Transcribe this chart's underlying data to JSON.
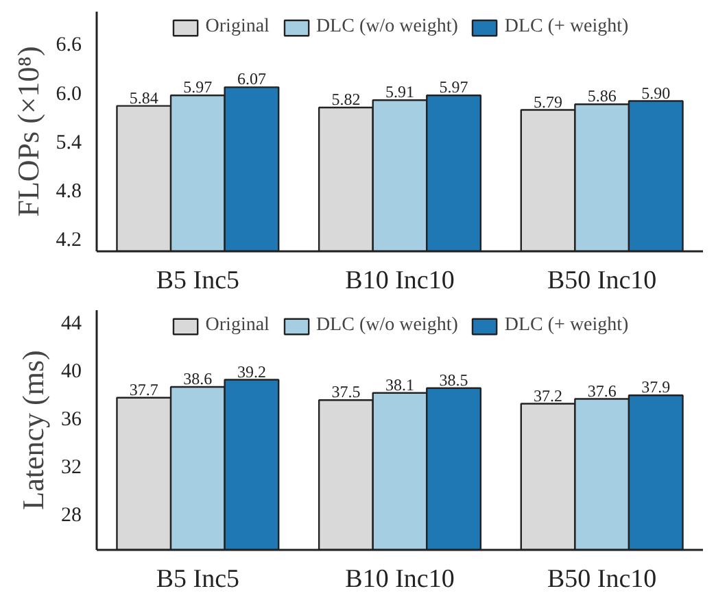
{
  "chart_data": [
    {
      "type": "bar",
      "ylabel": "FLOPs (×10⁸)",
      "categories": [
        "B5 Inc5",
        "B10 Inc10",
        "B50 Inc10"
      ],
      "ylim": [
        4.05,
        7.0
      ],
      "yticks": [
        {
          "value": 4.2,
          "label": "4.2"
        },
        {
          "value": 4.8,
          "label": "4.8"
        },
        {
          "value": 5.4,
          "label": "5.4"
        },
        {
          "value": 6.0,
          "label": "6.0"
        },
        {
          "value": 6.6,
          "label": "6.6"
        }
      ],
      "grid": false,
      "legend": "top",
      "series": [
        {
          "name": "Original",
          "color": "#d9d9d9",
          "values": [
            5.84,
            5.82,
            5.79
          ],
          "value_labels": [
            "5.84",
            "5.82",
            "5.79"
          ]
        },
        {
          "name": "DLC (w/o weight)",
          "color": "#a6cee3",
          "values": [
            5.97,
            5.91,
            5.86
          ],
          "value_labels": [
            "5.97",
            "5.91",
            "5.86"
          ]
        },
        {
          "name": "DLC (+ weight)",
          "color": "#1f78b4",
          "values": [
            6.07,
            5.97,
            5.9
          ],
          "value_labels": [
            "6.07",
            "5.97",
            "5.90"
          ]
        }
      ]
    },
    {
      "type": "bar",
      "ylabel": "Latency (ms)",
      "categories": [
        "B5 Inc5",
        "B10 Inc10",
        "B50 Inc10"
      ],
      "ylim": [
        25,
        45
      ],
      "yticks": [
        28,
        32,
        36,
        40,
        44
      ],
      "grid": false,
      "legend": "top",
      "series": [
        {
          "name": "Original",
          "color": "#d9d9d9",
          "values": [
            37.7,
            37.5,
            37.2
          ],
          "value_labels": [
            "37.7",
            "37.5",
            "37.2"
          ]
        },
        {
          "name": "DLC (w/o weight)",
          "color": "#a6cee3",
          "values": [
            38.6,
            38.1,
            37.6
          ],
          "value_labels": [
            "38.6",
            "38.1",
            "37.6"
          ]
        },
        {
          "name": "DLC (+ weight)",
          "color": "#1f78b4",
          "values": [
            39.2,
            38.5,
            37.9
          ],
          "value_labels": [
            "39.2",
            "38.5",
            "37.9"
          ]
        }
      ]
    }
  ]
}
